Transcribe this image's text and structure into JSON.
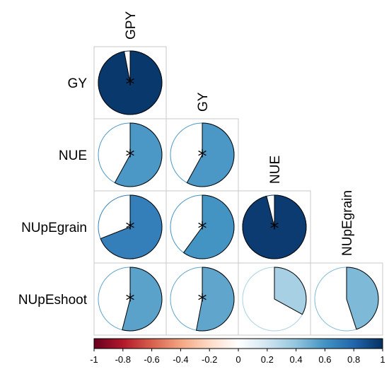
{
  "chart_data": {
    "type": "heatmap",
    "subtype": "correlation-pie",
    "layout": "lower-triangle",
    "variables_rows": [
      "GY",
      "NUE",
      "NUpEgrain",
      "NUpEshoot"
    ],
    "variables_cols": [
      "GPY",
      "GY",
      "NUE",
      "NUpEgrain"
    ],
    "cells": [
      {
        "row": "GY",
        "col": "GPY",
        "value": 0.97,
        "significant": true
      },
      {
        "row": "NUE",
        "col": "GPY",
        "value": 0.58,
        "significant": true
      },
      {
        "row": "NUE",
        "col": "GY",
        "value": 0.58,
        "significant": true
      },
      {
        "row": "NUpEgrain",
        "col": "GPY",
        "value": 0.69,
        "significant": true
      },
      {
        "row": "NUpEgrain",
        "col": "GY",
        "value": 0.6,
        "significant": true
      },
      {
        "row": "NUpEgrain",
        "col": "NUE",
        "value": 0.96,
        "significant": true
      },
      {
        "row": "NUpEshoot",
        "col": "GPY",
        "value": 0.54,
        "significant": true
      },
      {
        "row": "NUpEshoot",
        "col": "GY",
        "value": 0.53,
        "significant": true
      },
      {
        "row": "NUpEshoot",
        "col": "NUE",
        "value": 0.33,
        "significant": false
      },
      {
        "row": "NUpEshoot",
        "col": "NUpEgrain",
        "value": 0.45,
        "significant": false
      }
    ],
    "significance_marker": "*",
    "colorbar": {
      "range": [
        -1,
        1
      ],
      "ticks": [
        "-1",
        "-0.8",
        "-0.6",
        "-0.4",
        "-0.2",
        "0",
        "0.2",
        "0.4",
        "0.6",
        "0.8",
        "1"
      ],
      "colors": [
        "#67001F",
        "#B2182B",
        "#D6604D",
        "#F4A582",
        "#FDDBC7",
        "#FFFFFF",
        "#D1E5F0",
        "#92C5DE",
        "#4393C3",
        "#2166AC",
        "#053061"
      ]
    }
  }
}
